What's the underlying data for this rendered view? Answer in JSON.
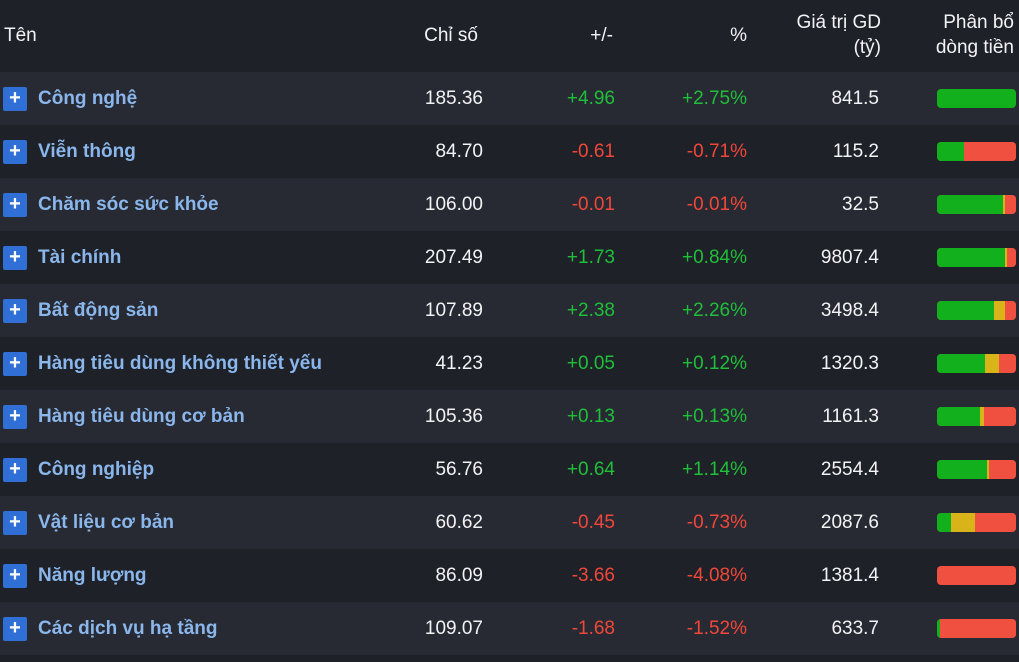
{
  "header": {
    "name": "Tên",
    "index": "Chỉ số",
    "change": "+/-",
    "pct": "%",
    "value_line1": "Giá trị GD",
    "value_line2": "(tỷ)",
    "flow_line1": "Phân bổ",
    "flow_line2": "dòng tiền"
  },
  "colors": {
    "up": "#1fbf3a",
    "down": "#f0473a",
    "sector_link": "#8ab6ec",
    "expand_button": "#2f6fd6",
    "bar_green": "#12b01c",
    "bar_yellow": "#d8b41a",
    "bar_red": "#f05040"
  },
  "expand_icon": "plus-icon",
  "expand_symbol": "+",
  "rows": [
    {
      "name": "Công nghệ",
      "index": "185.36",
      "change": "+4.96",
      "pct": "+2.75%",
      "value": "841.5",
      "trend": "up",
      "flow": {
        "green": 1.0,
        "yellow": 0.0,
        "red": 0.0
      }
    },
    {
      "name": "Viễn thông",
      "index": "84.70",
      "change": "-0.61",
      "pct": "-0.71%",
      "value": "115.2",
      "trend": "down",
      "flow": {
        "green": 0.34,
        "yellow": 0.0,
        "red": 0.66
      }
    },
    {
      "name": "Chăm sóc sức khỏe",
      "index": "106.00",
      "change": "-0.01",
      "pct": "-0.01%",
      "value": "32.5",
      "trend": "down",
      "flow": {
        "green": 0.83,
        "yellow": 0.03,
        "red": 0.14
      }
    },
    {
      "name": "Tài chính",
      "index": "207.49",
      "change": "+1.73",
      "pct": "+0.84%",
      "value": "9807.4",
      "trend": "up",
      "flow": {
        "green": 0.86,
        "yellow": 0.03,
        "red": 0.11
      }
    },
    {
      "name": "Bất động sản",
      "index": "107.89",
      "change": "+2.38",
      "pct": "+2.26%",
      "value": "3498.4",
      "trend": "up",
      "flow": {
        "green": 0.72,
        "yellow": 0.14,
        "red": 0.14
      }
    },
    {
      "name": "Hàng tiêu dùng không thiết yếu",
      "index": "41.23",
      "change": "+0.05",
      "pct": "+0.12%",
      "value": "1320.3",
      "trend": "up",
      "flow": {
        "green": 0.61,
        "yellow": 0.18,
        "red": 0.21
      }
    },
    {
      "name": "Hàng tiêu dùng cơ bản",
      "index": "105.36",
      "change": "+0.13",
      "pct": "+0.13%",
      "value": "1161.3",
      "trend": "up",
      "flow": {
        "green": 0.54,
        "yellow": 0.06,
        "red": 0.4
      }
    },
    {
      "name": "Công nghiệp",
      "index": "56.76",
      "change": "+0.64",
      "pct": "+1.14%",
      "value": "2554.4",
      "trend": "up",
      "flow": {
        "green": 0.63,
        "yellow": 0.03,
        "red": 0.34
      }
    },
    {
      "name": "Vật liệu cơ bản",
      "index": "60.62",
      "change": "-0.45",
      "pct": "-0.73%",
      "value": "2087.6",
      "trend": "down",
      "flow": {
        "green": 0.18,
        "yellow": 0.3,
        "red": 0.52
      }
    },
    {
      "name": "Năng lượng",
      "index": "86.09",
      "change": "-3.66",
      "pct": "-4.08%",
      "value": "1381.4",
      "trend": "down",
      "flow": {
        "green": 0.0,
        "yellow": 0.0,
        "red": 1.0
      }
    },
    {
      "name": "Các dịch vụ hạ tầng",
      "index": "109.07",
      "change": "-1.68",
      "pct": "-1.52%",
      "value": "633.7",
      "trend": "down",
      "flow": {
        "green": 0.04,
        "yellow": 0.0,
        "red": 0.96
      }
    }
  ]
}
